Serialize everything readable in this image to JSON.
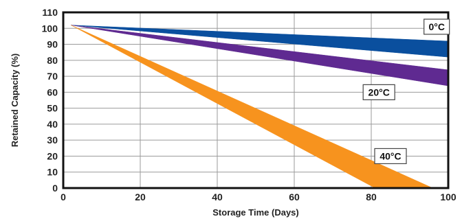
{
  "chart_data": {
    "type": "area",
    "xlabel": "Storage Time (Days)",
    "ylabel": "Retained Capacity (%)",
    "xlim": [
      0,
      100
    ],
    "ylim": [
      0,
      110
    ],
    "x_ticks": [
      0,
      20,
      40,
      60,
      80,
      100
    ],
    "y_ticks": [
      0,
      10,
      20,
      30,
      40,
      50,
      60,
      70,
      80,
      90,
      100,
      110
    ],
    "grid": true,
    "series": [
      {
        "name": "0°C",
        "color": "#0a4f9e",
        "upper": [
          [
            2,
            102
          ],
          [
            100,
            92
          ]
        ],
        "lower": [
          [
            2,
            102
          ],
          [
            100,
            82
          ]
        ],
        "label_at": [
          97,
          101
        ]
      },
      {
        "name": "20°C",
        "color": "#5f2a91",
        "upper": [
          [
            2,
            102
          ],
          [
            100,
            74
          ]
        ],
        "lower": [
          [
            2,
            102
          ],
          [
            100,
            64
          ]
        ],
        "label_at": [
          82,
          60
        ]
      },
      {
        "name": "40°C",
        "color": "#f7931e",
        "upper": [
          [
            2,
            102
          ],
          [
            96,
            0
          ]
        ],
        "lower": [
          [
            2,
            102
          ],
          [
            81,
            0
          ]
        ],
        "label_at": [
          85,
          20
        ]
      }
    ]
  }
}
